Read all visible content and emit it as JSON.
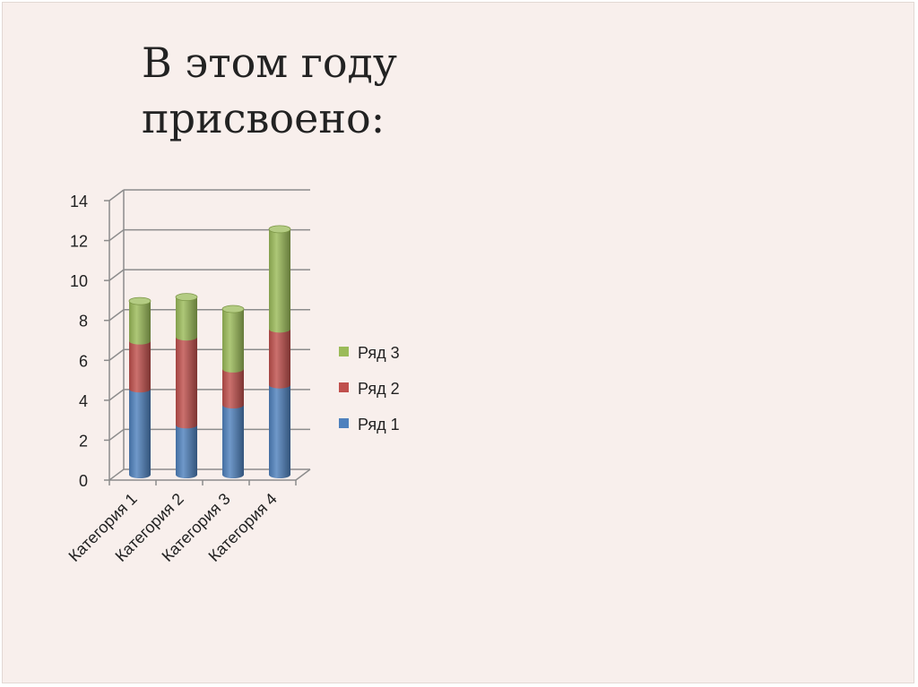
{
  "slide": {
    "title": "В этом году\nприсвоено:"
  },
  "chart_data": {
    "type": "bar",
    "stacked": true,
    "style": "3d-cylinder",
    "categories": [
      "Категория 1",
      "Категория 2",
      "Категория 3",
      "Категория 4"
    ],
    "series": [
      {
        "name": "Ряд 1",
        "values": [
          4.3,
          2.5,
          3.5,
          4.5
        ],
        "color": "#4f81bd"
      },
      {
        "name": "Ряд 2",
        "values": [
          2.4,
          4.4,
          1.8,
          2.8
        ],
        "color": "#c0504d"
      },
      {
        "name": "Ряд 3",
        "values": [
          2.0,
          2.0,
          3.0,
          5.0
        ],
        "color": "#9bbb59"
      }
    ],
    "ylim": [
      0,
      14
    ],
    "yticks": [
      0,
      2,
      4,
      6,
      8,
      10,
      12,
      14
    ],
    "grid": true,
    "legend": "right"
  }
}
